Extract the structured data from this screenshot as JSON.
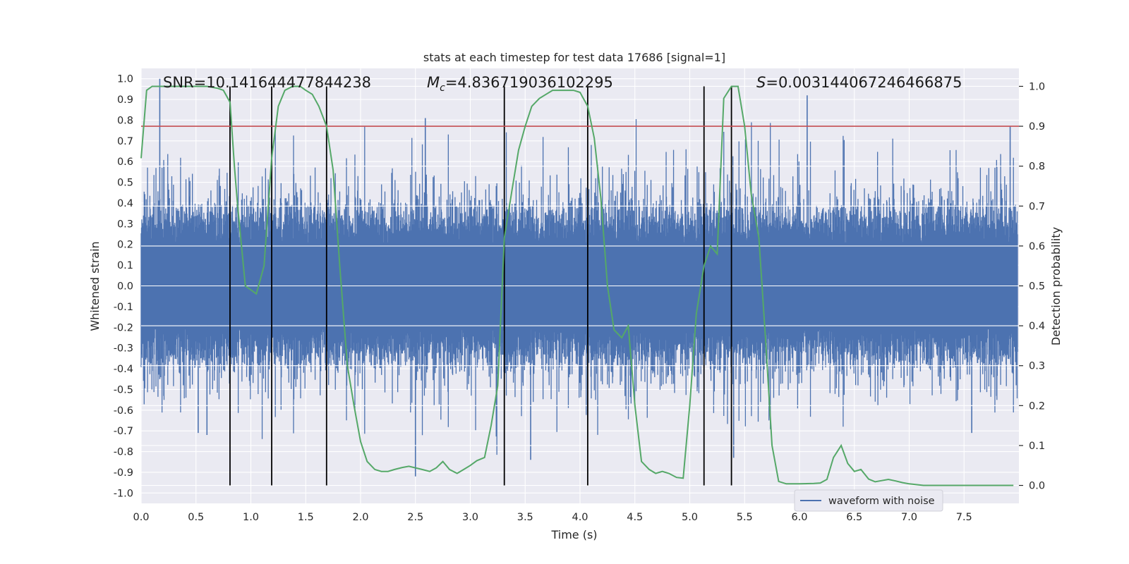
{
  "chart_data": {
    "type": "line",
    "title": "stats at each timestep for test data 17686 [signal=1]",
    "xlabel": "Time (s)",
    "ylabel_left": "Whitened strain",
    "ylabel_right": "Detection probability",
    "xlim": [
      0.0,
      8.0
    ],
    "ylim_left": [
      -1.05,
      1.05
    ],
    "ylim_right": [
      -0.045,
      1.045
    ],
    "x_ticks": [
      0.0,
      0.5,
      1.0,
      1.5,
      2.0,
      2.5,
      3.0,
      3.5,
      4.0,
      4.5,
      5.0,
      5.5,
      6.0,
      6.5,
      7.0,
      7.5
    ],
    "y_ticks_left": [
      -1.0,
      -0.9,
      -0.8,
      -0.7,
      -0.6,
      -0.5,
      -0.4,
      -0.3,
      -0.2,
      -0.1,
      0.0,
      0.1,
      0.2,
      0.3,
      0.4,
      0.5,
      0.6,
      0.7,
      0.8,
      0.9,
      1.0
    ],
    "y_ticks_right": [
      0.0,
      0.1,
      0.2,
      0.3,
      0.4,
      0.5,
      0.6,
      0.7,
      0.8,
      0.9,
      1.0
    ],
    "grid": true,
    "legend_placement": "lower-center-right",
    "annotations": {
      "snr": "SNR=10.141644477844238",
      "mc_symbol": "M",
      "mc_sub": "c",
      "mc_value": "=4.836719036102295",
      "s_symbol": "S",
      "s_value": "=0.003144067246466875"
    },
    "threshold": {
      "value": 0.9,
      "axis": "right",
      "color": "#c44e52"
    },
    "vlines": [
      0.81,
      1.19,
      1.69,
      3.31,
      4.07,
      5.13,
      5.38
    ],
    "vline_range_right": [
      0.0,
      1.0
    ],
    "series": [
      {
        "name": "waveform with noise",
        "axis": "left",
        "color": "#4c72b0",
        "style": "noise-envelope",
        "core_amplitude": 0.33,
        "peak_amplitude": 0.72,
        "notable_peaks": [
          {
            "x": 0.17,
            "y": 1.0
          },
          {
            "x": 0.17,
            "y": -0.45
          },
          {
            "x": 0.52,
            "y": -0.71
          },
          {
            "x": 0.6,
            "y": -0.72
          },
          {
            "x": 2.59,
            "y": 0.81
          },
          {
            "x": 2.5,
            "y": -0.92
          },
          {
            "x": 3.55,
            "y": -0.84
          },
          {
            "x": 5.4,
            "y": -0.83
          },
          {
            "x": 6.07,
            "y": 0.92
          },
          {
            "x": 7.57,
            "y": -0.71
          },
          {
            "x": 7.92,
            "y": 0.77
          }
        ]
      },
      {
        "name": "",
        "axis": "right",
        "color": "#55a868",
        "x": [
          0.0,
          0.05,
          0.1,
          0.2,
          0.3,
          0.4,
          0.5,
          0.6,
          0.7,
          0.75,
          0.81,
          0.85,
          0.88,
          0.95,
          1.05,
          1.12,
          1.19,
          1.25,
          1.31,
          1.38,
          1.45,
          1.5,
          1.56,
          1.62,
          1.69,
          1.75,
          1.81,
          1.88,
          1.94,
          2.0,
          2.06,
          2.13,
          2.19,
          2.25,
          2.31,
          2.38,
          2.44,
          2.5,
          2.56,
          2.63,
          2.69,
          2.75,
          2.81,
          2.88,
          2.94,
          3.0,
          3.06,
          3.13,
          3.19,
          3.25,
          3.31,
          3.38,
          3.44,
          3.5,
          3.56,
          3.63,
          3.69,
          3.75,
          3.81,
          3.88,
          3.94,
          4.0,
          4.07,
          4.13,
          4.19,
          4.25,
          4.31,
          4.38,
          4.44,
          4.5,
          4.56,
          4.63,
          4.69,
          4.75,
          4.81,
          4.88,
          4.94,
          5.0,
          5.06,
          5.13,
          5.19,
          5.25,
          5.31,
          5.38,
          5.44,
          5.5,
          5.56,
          5.63,
          5.69,
          5.75,
          5.81,
          5.88,
          6.0,
          6.13,
          6.19,
          6.25,
          6.31,
          6.38,
          6.44,
          6.5,
          6.56,
          6.63,
          6.69,
          6.75,
          6.81,
          6.88,
          6.94,
          7.0,
          7.13,
          7.25,
          7.38,
          7.5,
          7.63,
          7.75,
          7.88,
          7.95
        ],
        "y": [
          0.82,
          0.99,
          1.0,
          1.0,
          1.0,
          1.0,
          1.0,
          1.0,
          0.995,
          0.99,
          0.96,
          0.8,
          0.7,
          0.5,
          0.48,
          0.55,
          0.82,
          0.95,
          0.99,
          1.0,
          1.0,
          0.99,
          0.98,
          0.95,
          0.9,
          0.79,
          0.55,
          0.3,
          0.2,
          0.11,
          0.06,
          0.04,
          0.035,
          0.035,
          0.04,
          0.045,
          0.048,
          0.044,
          0.04,
          0.035,
          0.044,
          0.06,
          0.04,
          0.03,
          0.04,
          0.05,
          0.062,
          0.07,
          0.15,
          0.25,
          0.62,
          0.74,
          0.84,
          0.9,
          0.95,
          0.97,
          0.98,
          0.99,
          0.99,
          0.99,
          0.99,
          0.985,
          0.95,
          0.87,
          0.72,
          0.5,
          0.39,
          0.37,
          0.4,
          0.2,
          0.06,
          0.04,
          0.03,
          0.035,
          0.03,
          0.02,
          0.018,
          0.2,
          0.43,
          0.55,
          0.6,
          0.58,
          0.97,
          1.0,
          1.0,
          0.9,
          0.73,
          0.62,
          0.37,
          0.1,
          0.01,
          0.004,
          0.004,
          0.005,
          0.006,
          0.015,
          0.07,
          0.1,
          0.055,
          0.035,
          0.04,
          0.016,
          0.009,
          0.012,
          0.015,
          0.011,
          0.007,
          0.004,
          0.0,
          0.0,
          0.0,
          0.0,
          0.0,
          0.0,
          0.0,
          0.0
        ]
      }
    ]
  }
}
